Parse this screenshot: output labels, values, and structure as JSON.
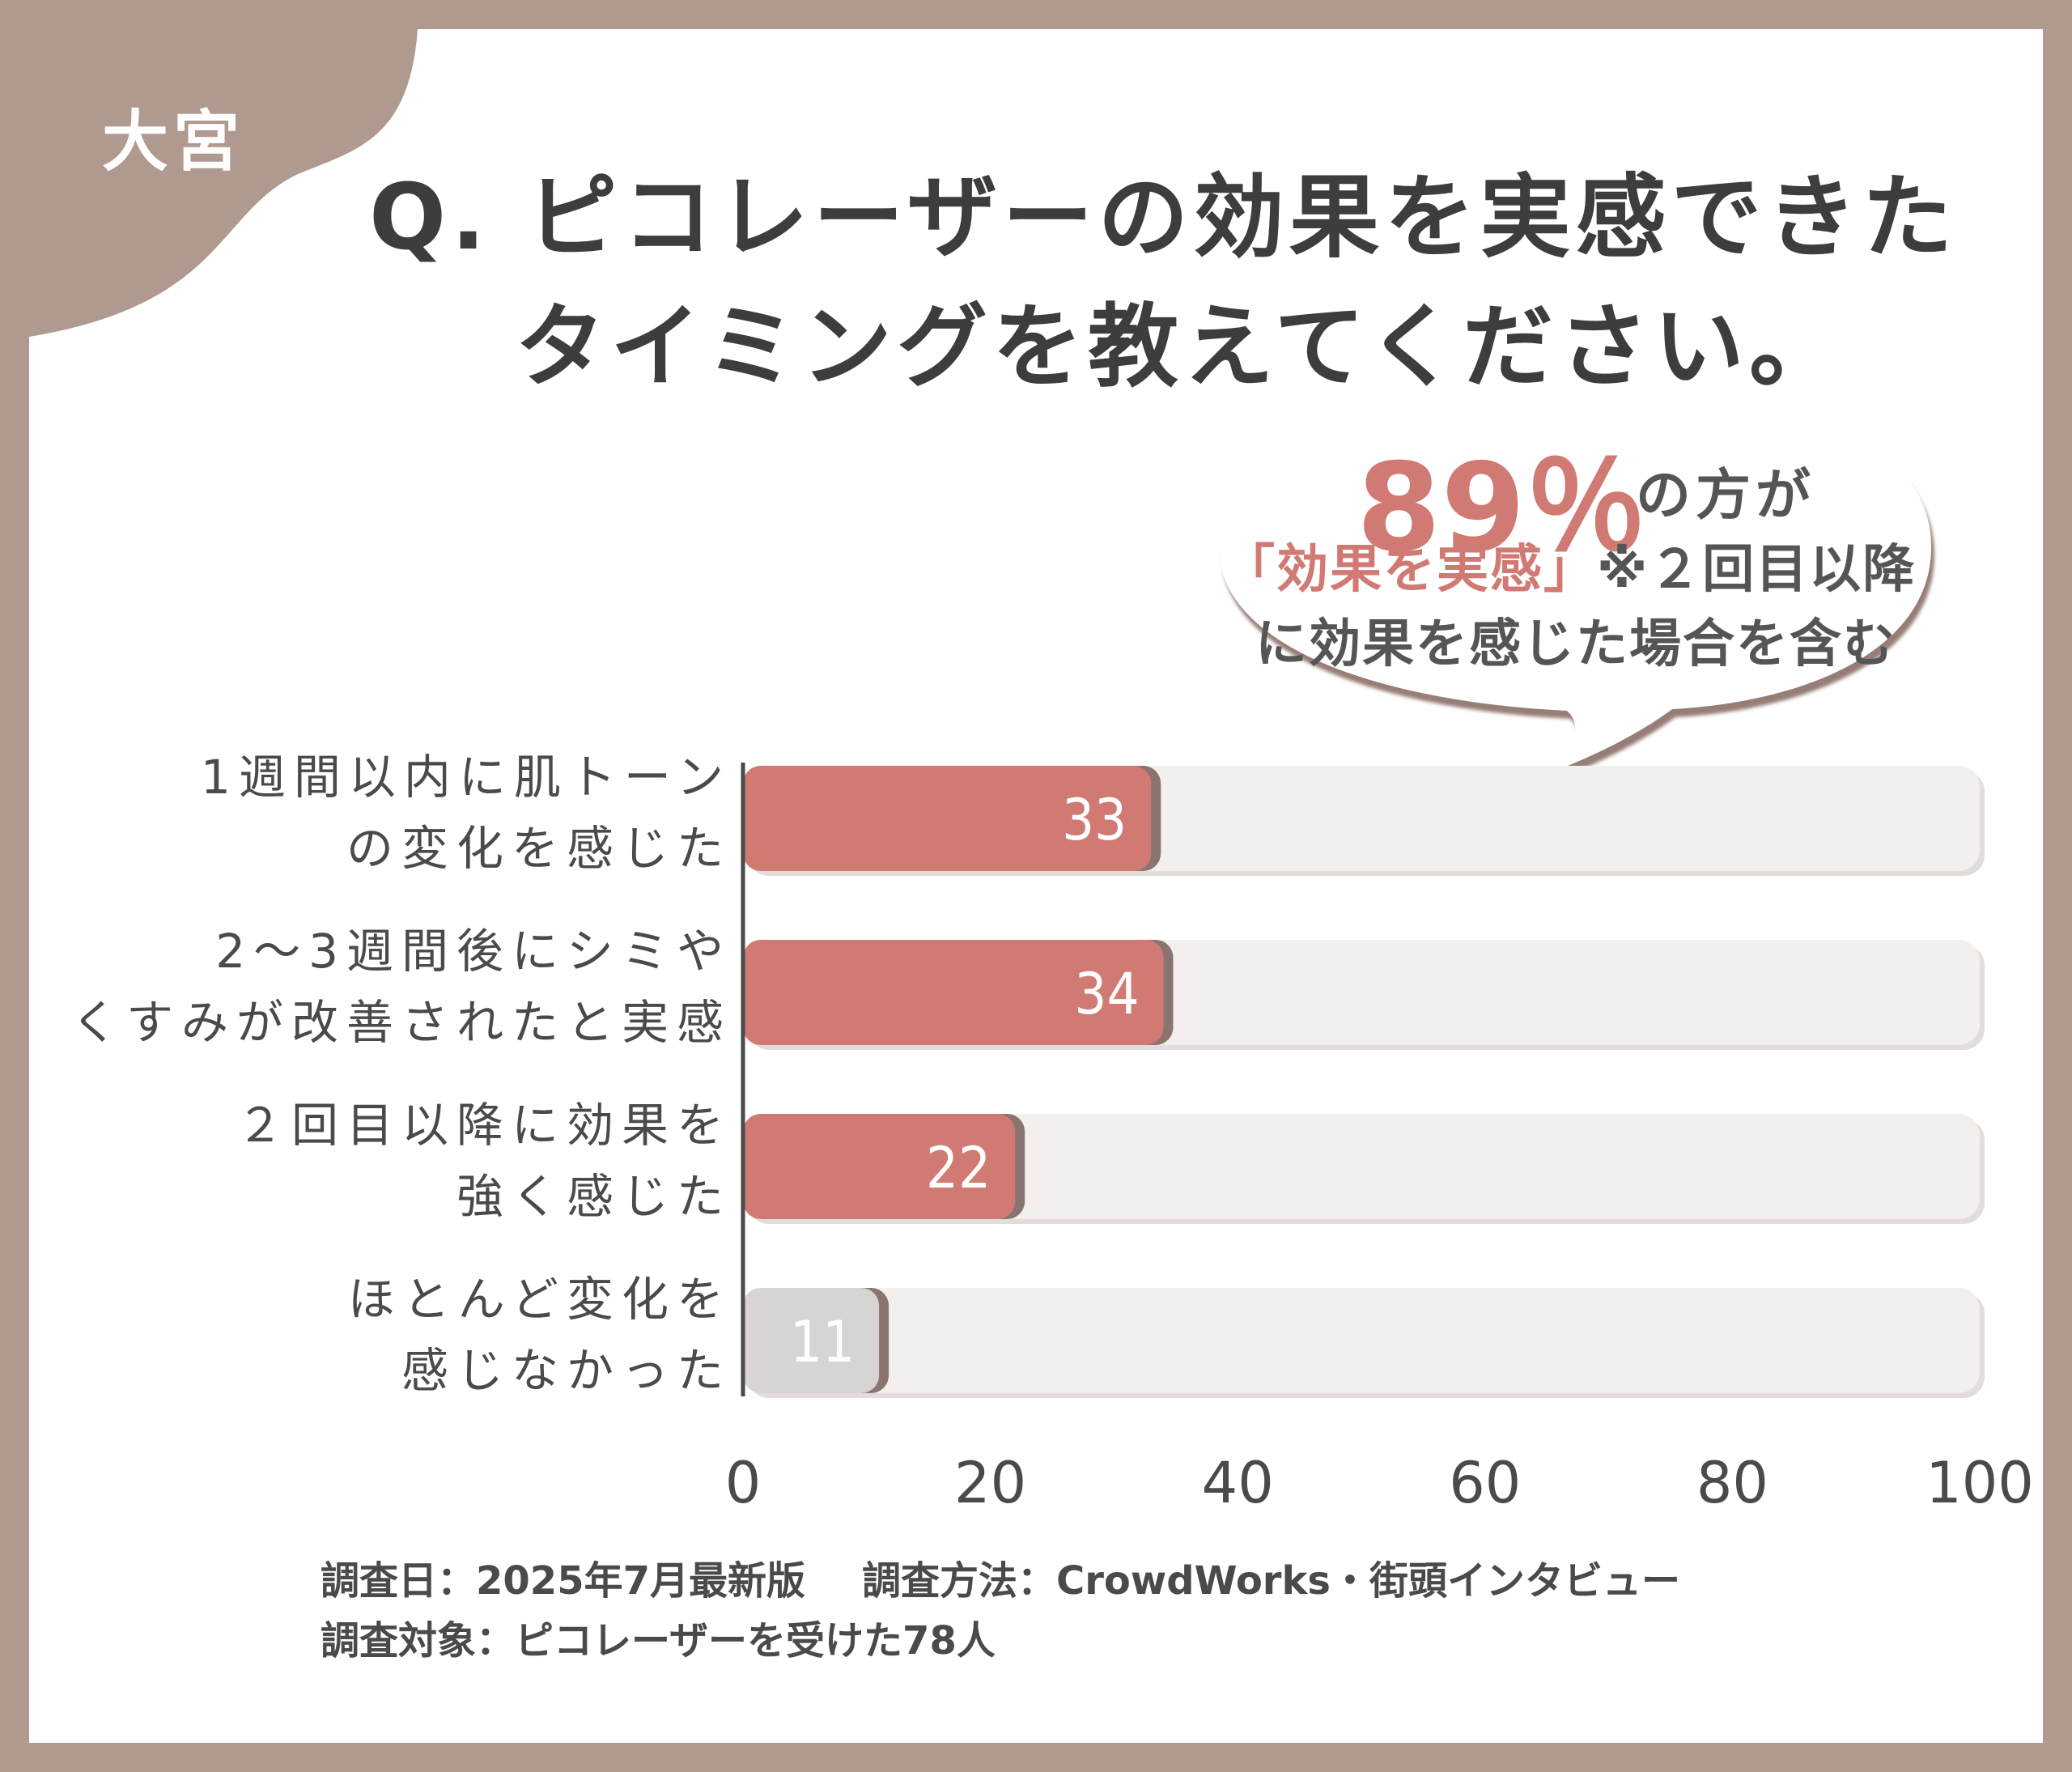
{
  "badge": "大宮",
  "title": {
    "line1": "Q. ピコレーザーの効果を実感できた",
    "line2": "タイミングを教えてください。"
  },
  "callout": {
    "percent": "89％",
    "percent_suffix": "の方が",
    "highlight": "「効果を実感」",
    "note_line1": "※２回目以降",
    "note_line2": "に効果を感じた場合を含む"
  },
  "chart_data": {
    "type": "bar",
    "orientation": "horizontal",
    "categories": [
      [
        "1週間以内に肌トーン",
        "の変化を感じた"
      ],
      [
        "2〜3週間後にシミや",
        "くすみが改善されたと実感"
      ],
      [
        "２回目以降に効果を",
        "強く感じた"
      ],
      [
        "ほとんど変化を",
        "感じなかった"
      ]
    ],
    "values": [
      33,
      34,
      22,
      11
    ],
    "bar_colors": [
      "#d17a74",
      "#d17a74",
      "#d17a74",
      "#d8d4d4"
    ],
    "track_color": "#f3efec",
    "xlim": [
      0,
      100
    ],
    "xticks": [
      0,
      20,
      40,
      60,
      80,
      100
    ]
  },
  "footer": {
    "date": "調査日：2025年7月最新版",
    "method": "調査方法：CrowdWorks・街頭インタビュー",
    "target": "調査対象：ピコレーザーを受けた78人"
  }
}
